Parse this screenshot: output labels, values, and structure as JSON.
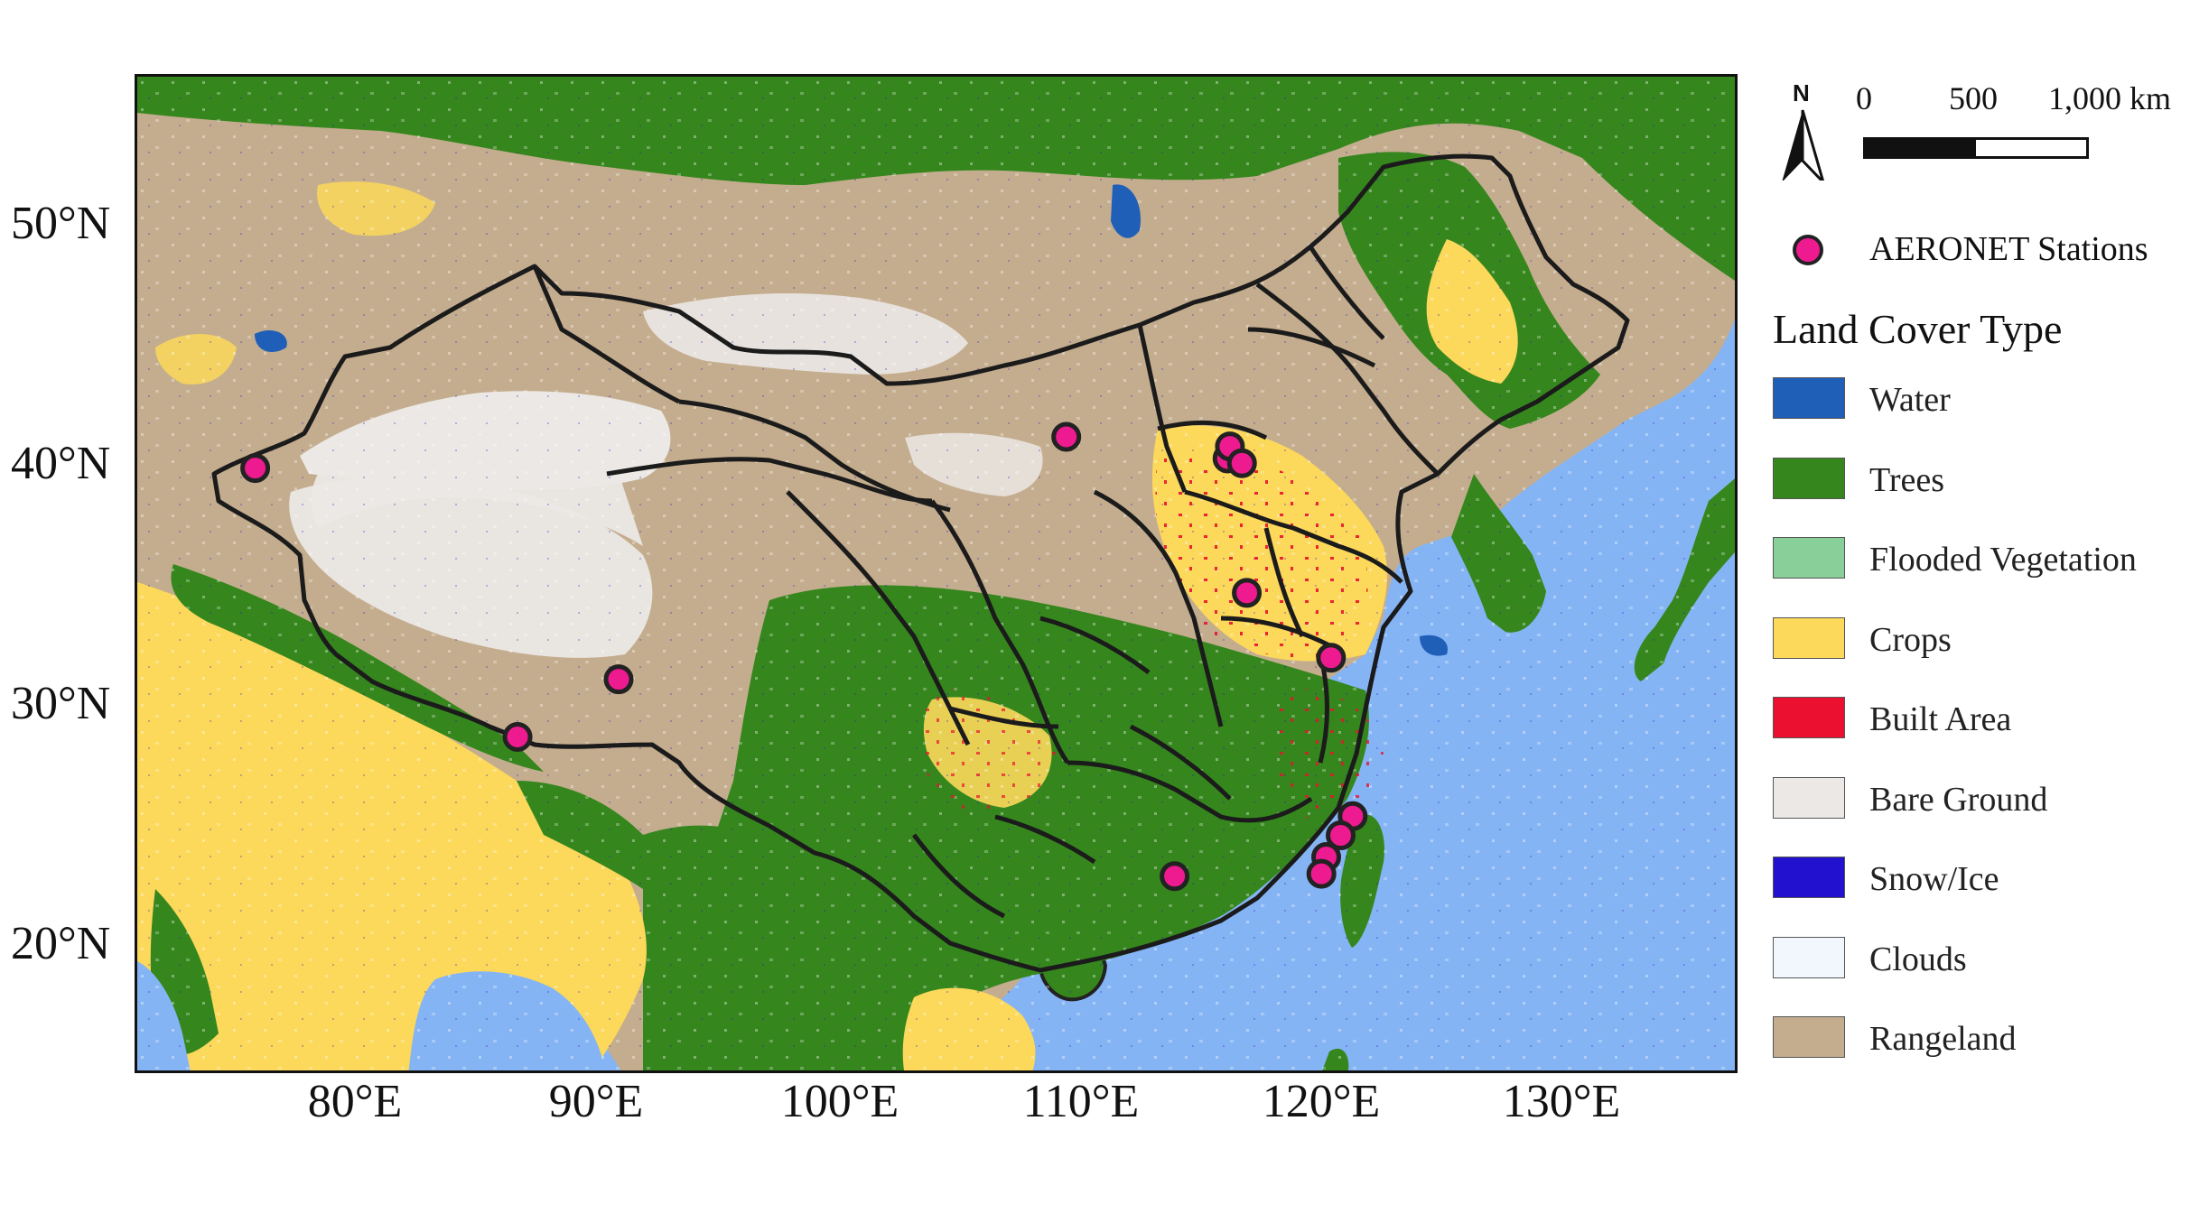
{
  "figure": {
    "lat_labels": [
      "50°N",
      "40°N",
      "30°N",
      "20°N"
    ],
    "lon_labels": [
      "80°E",
      "90°E",
      "100°E",
      "110°E",
      "120°E",
      "130°E"
    ],
    "north_arrow_letter": "N",
    "scale_bar": {
      "ticks": [
        "0",
        "500",
        "1,000 km"
      ]
    },
    "station_legend_label": "AERONET Stations",
    "legend_title": "Land Cover Type",
    "legend_items": [
      {
        "label": "Water",
        "color": "#1f5fb8"
      },
      {
        "label": "Trees",
        "color": "#36861e"
      },
      {
        "label": "Flooded Vegetation",
        "color": "#88cf99"
      },
      {
        "label": "Crops",
        "color": "#fcd85b"
      },
      {
        "label": "Built Area",
        "color": "#eb1030"
      },
      {
        "label": "Bare Ground",
        "color": "#ebe8e5"
      },
      {
        "label": "Snow/Ice",
        "color": "#2212cf"
      },
      {
        "label": "Clouds",
        "color": "#f1f7fc"
      },
      {
        "label": "Rangeland",
        "color": "#c4ad8e"
      }
    ],
    "ocean_color": "#85b4f5",
    "station_color": "#ee1a8f",
    "stations_lonlat": [
      [
        75.9,
        39.5
      ],
      [
        109.6,
        40.8
      ],
      [
        116.3,
        39.9
      ],
      [
        116.4,
        40.4
      ],
      [
        116.9,
        39.7
      ],
      [
        117.1,
        34.3
      ],
      [
        91.0,
        30.7
      ],
      [
        86.8,
        28.3
      ],
      [
        120.6,
        31.6
      ],
      [
        121.5,
        25.0
      ],
      [
        121.0,
        24.2
      ],
      [
        120.4,
        23.3
      ],
      [
        120.2,
        22.6
      ],
      [
        114.1,
        22.5
      ]
    ]
  }
}
